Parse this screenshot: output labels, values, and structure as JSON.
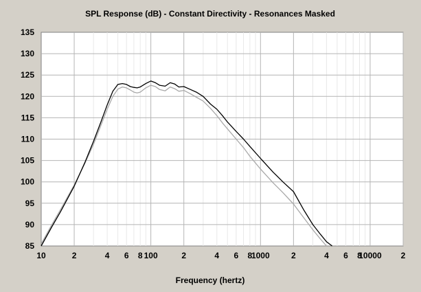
{
  "chart_data": {
    "type": "line",
    "title": "SPL Response (dB) - Constant Directivity - Resonances Masked",
    "xlabel": "Frequency (hertz)",
    "ylabel": "",
    "x_scale": "log",
    "xlim": [
      10,
      20000
    ],
    "ylim": [
      85,
      135
    ],
    "grid": true,
    "colors": {
      "background": "#d4d0c8",
      "plot_bg": "#ffffff",
      "grid_minor": "#e8e8e8",
      "grid_major": "#b4b4b4",
      "series_dark": "#000000",
      "series_light": "#a8a8a8"
    },
    "y_ticks": [
      85,
      90,
      95,
      100,
      105,
      110,
      115,
      120,
      125,
      130,
      135
    ],
    "x_ticks": [
      {
        "value": 10,
        "label": "10"
      },
      {
        "value": 20,
        "label": "2"
      },
      {
        "value": 40,
        "label": "4"
      },
      {
        "value": 60,
        "label": "6"
      },
      {
        "value": 80,
        "label": "8"
      },
      {
        "value": 100,
        "label": "100"
      },
      {
        "value": 200,
        "label": "2"
      },
      {
        "value": 400,
        "label": "4"
      },
      {
        "value": 600,
        "label": "6"
      },
      {
        "value": 800,
        "label": "8"
      },
      {
        "value": 1000,
        "label": "1000"
      },
      {
        "value": 2000,
        "label": "2"
      },
      {
        "value": 4000,
        "label": "4"
      },
      {
        "value": 6000,
        "label": "6"
      },
      {
        "value": 8000,
        "label": "8"
      },
      {
        "value": 10000,
        "label": "10000"
      },
      {
        "value": 20000,
        "label": "2"
      }
    ],
    "series": [
      {
        "color": "#000000",
        "x": [
          10,
          12.5,
          15,
          20,
          25,
          30,
          35,
          40,
          45,
          50,
          55,
          60,
          65,
          70,
          75,
          80,
          90,
          100,
          110,
          120,
          135,
          150,
          165,
          180,
          200,
          230,
          260,
          300,
          350,
          400,
          450,
          500,
          600,
          700,
          800,
          1000,
          1300,
          1600,
          2000,
          2500,
          3000,
          3500,
          4000,
          4500
        ],
        "values": [
          85.0,
          89.5,
          93.0,
          99.0,
          104.5,
          109.5,
          114.0,
          118.0,
          121.2,
          122.8,
          123.0,
          122.8,
          122.3,
          122.1,
          122.0,
          122.2,
          123.0,
          123.6,
          123.2,
          122.6,
          122.4,
          123.2,
          122.9,
          122.2,
          122.3,
          121.6,
          121.0,
          120.0,
          118.2,
          117.0,
          115.5,
          114.0,
          111.8,
          110.0,
          108.3,
          105.5,
          102.3,
          100.0,
          97.7,
          93.3,
          90.0,
          87.8,
          86.0,
          85.0
        ]
      },
      {
        "color": "#a8a8a8",
        "x": [
          10,
          12.5,
          15,
          20,
          25,
          30,
          35,
          40,
          45,
          50,
          55,
          60,
          65,
          70,
          75,
          80,
          90,
          100,
          110,
          120,
          135,
          150,
          165,
          180,
          200,
          230,
          260,
          300,
          350,
          400,
          450,
          500,
          600,
          700,
          800,
          1000,
          1300,
          1600,
          2000,
          2500,
          3000,
          3500,
          4000
        ],
        "values": [
          85.5,
          90.0,
          93.5,
          99.3,
          104.3,
          108.8,
          113.2,
          117.0,
          120.0,
          121.7,
          122.2,
          122.0,
          121.5,
          121.0,
          120.8,
          121.0,
          122.0,
          122.6,
          122.3,
          121.6,
          121.3,
          122.2,
          121.8,
          121.2,
          121.4,
          120.6,
          119.8,
          118.9,
          117.2,
          115.5,
          113.8,
          112.4,
          110.0,
          108.0,
          106.0,
          103.0,
          99.8,
          97.5,
          94.8,
          91.5,
          88.8,
          86.7,
          85.0
        ]
      }
    ]
  }
}
